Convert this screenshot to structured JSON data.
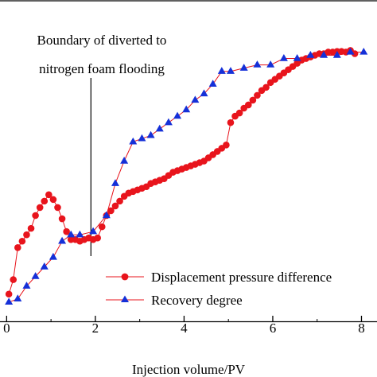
{
  "chart_data": {
    "type": "line",
    "title": "",
    "xlabel": "Injection volume/PV",
    "ylabel": "",
    "xlim": [
      -0.15,
      8.35
    ],
    "ylim": [
      0,
      1
    ],
    "x_ticks": [
      0,
      2,
      4,
      6,
      8
    ],
    "x_tick_labels": [
      "0",
      "2",
      "4",
      "6",
      "8"
    ],
    "grid": false,
    "legend_position": "lower-right",
    "annotation": {
      "lines": [
        "Boundary of diverted to",
        "nitrogen foam flooding"
      ],
      "x": 1.9
    },
    "series": [
      {
        "name": "Displacement pressure difference",
        "marker": "circle",
        "color": "#e8141c",
        "x": [
          0.05,
          0.15,
          0.25,
          0.35,
          0.45,
          0.55,
          0.65,
          0.75,
          0.85,
          0.95,
          1.05,
          1.15,
          1.25,
          1.35,
          1.45,
          1.55,
          1.65,
          1.75,
          1.85,
          1.95,
          2.05,
          2.15,
          2.25,
          2.35,
          2.45,
          2.55,
          2.65,
          2.75,
          2.85,
          2.95,
          3.05,
          3.15,
          3.25,
          3.35,
          3.45,
          3.55,
          3.65,
          3.75,
          3.85,
          3.95,
          4.05,
          4.15,
          4.25,
          4.35,
          4.45,
          4.55,
          4.65,
          4.75,
          4.85,
          4.95,
          5.05,
          5.15,
          5.25,
          5.35,
          5.45,
          5.55,
          5.65,
          5.75,
          5.85,
          5.95,
          6.05,
          6.15,
          6.25,
          6.35,
          6.45,
          6.55,
          6.65,
          6.75,
          6.85,
          6.95,
          7.05,
          7.15,
          7.25,
          7.35,
          7.45,
          7.55,
          7.65,
          7.75,
          7.85
        ],
        "values": [
          0.085,
          0.13,
          0.23,
          0.25,
          0.27,
          0.29,
          0.33,
          0.355,
          0.375,
          0.395,
          0.38,
          0.355,
          0.32,
          0.28,
          0.255,
          0.255,
          0.25,
          0.255,
          0.26,
          0.255,
          0.26,
          0.295,
          0.33,
          0.345,
          0.36,
          0.375,
          0.39,
          0.4,
          0.405,
          0.41,
          0.415,
          0.42,
          0.43,
          0.435,
          0.44,
          0.445,
          0.455,
          0.465,
          0.47,
          0.475,
          0.48,
          0.485,
          0.49,
          0.495,
          0.5,
          0.51,
          0.52,
          0.53,
          0.54,
          0.55,
          0.62,
          0.64,
          0.65,
          0.665,
          0.675,
          0.69,
          0.705,
          0.72,
          0.73,
          0.745,
          0.755,
          0.765,
          0.775,
          0.785,
          0.795,
          0.805,
          0.815,
          0.82,
          0.825,
          0.83,
          0.835,
          0.835,
          0.84,
          0.84,
          0.842,
          0.842,
          0.84,
          0.845,
          0.835
        ]
      },
      {
        "name": "Recovery degree",
        "marker": "triangle",
        "color": "#1530d8",
        "x": [
          0.05,
          0.25,
          0.45,
          0.65,
          0.85,
          1.05,
          1.25,
          1.45,
          1.65,
          1.95,
          2.25,
          2.45,
          2.65,
          2.85,
          3.05,
          3.25,
          3.45,
          3.65,
          3.85,
          4.05,
          4.25,
          4.45,
          4.65,
          4.85,
          5.05,
          5.35,
          5.65,
          5.95,
          6.25,
          6.55,
          6.85,
          7.15,
          7.45,
          7.75,
          8.05
        ],
        "values": [
          0.06,
          0.07,
          0.11,
          0.14,
          0.17,
          0.2,
          0.25,
          0.27,
          0.27,
          0.28,
          0.33,
          0.43,
          0.5,
          0.56,
          0.57,
          0.58,
          0.6,
          0.62,
          0.64,
          0.66,
          0.69,
          0.71,
          0.74,
          0.78,
          0.78,
          0.79,
          0.8,
          0.8,
          0.82,
          0.82,
          0.83,
          0.83,
          0.83,
          0.84,
          0.84
        ]
      }
    ]
  }
}
